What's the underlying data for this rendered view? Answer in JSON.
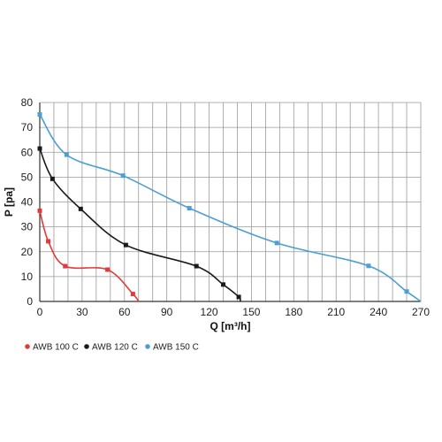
{
  "chart_data": {
    "type": "line",
    "xlabel": "Q [m³/h]",
    "ylabel": "P [pa]",
    "xlim": [
      0,
      270
    ],
    "ylim": [
      0,
      80
    ],
    "xticks": [
      "0",
      "30",
      "60",
      "90",
      "120",
      "150",
      "180",
      "210",
      "240",
      "270"
    ],
    "yticks": [
      "0",
      "10",
      "20",
      "30",
      "40",
      "50",
      "60",
      "70",
      "80"
    ],
    "grid": true,
    "legend_position": "bottom-left",
    "series": [
      {
        "name": "AWB 100 C",
        "color": "#e03a3a",
        "points": [
          [
            0,
            36.5
          ],
          [
            6,
            24.2
          ],
          [
            18,
            14.2
          ],
          [
            48,
            12.8
          ],
          [
            66,
            3
          ],
          [
            70,
            0
          ]
        ]
      },
      {
        "name": "AWB 120 C",
        "color": "#1a1a1a",
        "points": [
          [
            0,
            61.5
          ],
          [
            9,
            49.3
          ],
          [
            29,
            37.2
          ],
          [
            61,
            22.7
          ],
          [
            111,
            14.2
          ],
          [
            130,
            6.8
          ],
          [
            141,
            1.8
          ],
          [
            142,
            0
          ]
        ]
      },
      {
        "name": "AWB 150 C",
        "color": "#4a9fd4",
        "points": [
          [
            0,
            75.2
          ],
          [
            19,
            59
          ],
          [
            59,
            50.6
          ],
          [
            106,
            37.5
          ],
          [
            168,
            23.5
          ],
          [
            233,
            14.3
          ],
          [
            260,
            4
          ],
          [
            270,
            0
          ]
        ]
      }
    ]
  }
}
